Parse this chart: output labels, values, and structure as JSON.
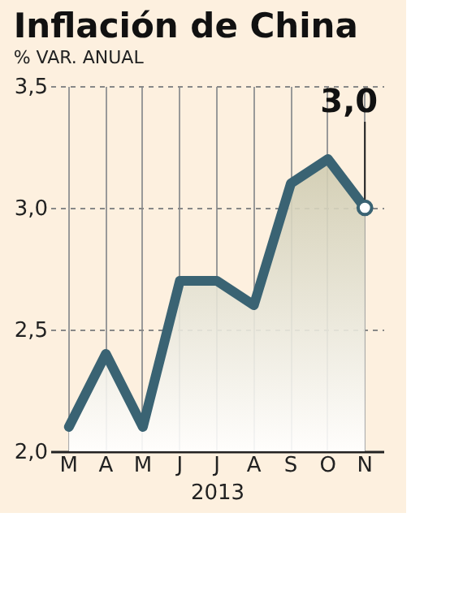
{
  "chart_data": {
    "type": "area",
    "title": "Inflación de China",
    "subtitle": "% VAR. ANUAL",
    "xlabel": "2013",
    "categories": [
      "M",
      "A",
      "M",
      "J",
      "J",
      "A",
      "S",
      "O",
      "N"
    ],
    "series": [
      {
        "color": "#3a6373",
        "values": [
          2.1,
          2.4,
          2.1,
          2.7,
          2.7,
          2.6,
          3.1,
          3.2,
          3.0
        ]
      }
    ],
    "ylim": [
      2.0,
      3.5
    ],
    "yticks": [
      {
        "value": 2.0,
        "label": "2,0"
      },
      {
        "value": 2.5,
        "label": "2,5"
      },
      {
        "value": 3.0,
        "label": "3,0"
      },
      {
        "value": 3.5,
        "label": "3,5"
      }
    ],
    "grid": true,
    "annotations": [
      {
        "text": "3,0",
        "x": "N",
        "y": 3.0
      }
    ]
  }
}
